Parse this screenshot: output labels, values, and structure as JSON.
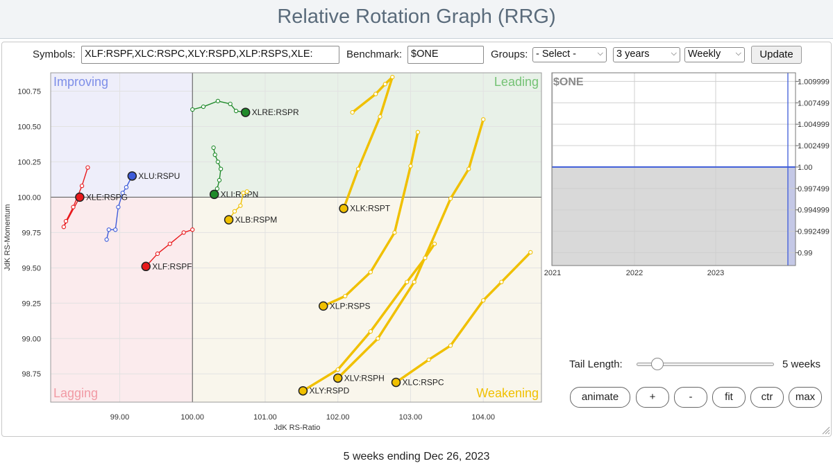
{
  "page_title": "Relative Rotation Graph (RRG)",
  "controls": {
    "symbols_label": "Symbols:",
    "symbols_value": "XLF:RSPF,XLC:RSPC,XLY:RSPD,XLP:RSPS,XLE:",
    "benchmark_label": "Benchmark:",
    "benchmark_value": "$ONE",
    "groups_label": "Groups:",
    "groups_value": "- Select -",
    "period_value": "3 years",
    "frequency_value": "Weekly",
    "update_label": "Update"
  },
  "colors": {
    "red": "#e8191c",
    "blue": "#3d5bd9",
    "green": "#1f8a2a",
    "yellow": "#f0c000",
    "improving_bg": "#eeeefa",
    "leading_bg": "#e8f1e8",
    "lagging_bg": "#fbebed",
    "weakening_bg": "#f9f6ec"
  },
  "chart_data": [
    {
      "type": "scatter",
      "title": "",
      "xlabel": "JdK RS-Ratio",
      "ylabel": "JdK RS-Momentum",
      "xlim": [
        98.05,
        104.8
      ],
      "ylim": [
        98.55,
        100.88
      ],
      "x_ticks": [
        "99.00",
        "100.00",
        "101.00",
        "102.00",
        "103.00",
        "104.00"
      ],
      "y_ticks": [
        "98.75",
        "99.00",
        "99.25",
        "99.50",
        "99.75",
        "100.00",
        "100.25",
        "100.50",
        "100.75"
      ],
      "grid": true,
      "center": [
        100,
        100
      ],
      "quadrants": {
        "improving": "Improving",
        "leading": "Leading",
        "lagging": "Lagging",
        "weakening": "Weakening"
      },
      "series": [
        {
          "name": "XLRE:RSPR",
          "color": "green",
          "thick": false,
          "x": [
            100.0,
            100.15,
            100.35,
            100.52,
            100.6,
            100.73
          ],
          "y": [
            100.62,
            100.64,
            100.68,
            100.66,
            100.61,
            100.6
          ]
        },
        {
          "name": "XLI:RSPN",
          "color": "green",
          "thick": false,
          "x": [
            100.29,
            100.31,
            100.35,
            100.39,
            100.37,
            100.34,
            100.3
          ],
          "y": [
            100.35,
            100.3,
            100.25,
            100.2,
            100.12,
            100.06,
            100.02
          ]
        },
        {
          "name": "XLU:RSPU",
          "color": "blue",
          "thick": false,
          "x": [
            98.82,
            98.85,
            98.94,
            98.98,
            99.04,
            99.09,
            99.17
          ],
          "y": [
            99.7,
            99.77,
            99.77,
            99.93,
            100.03,
            100.07,
            100.15
          ]
        },
        {
          "name": "XLE:RSPG",
          "color": "red",
          "thick": false,
          "x": [
            98.56,
            98.48,
            98.36,
            98.26,
            98.23,
            98.45
          ],
          "y": [
            100.21,
            100.08,
            99.93,
            99.83,
            99.79,
            100.0
          ]
        },
        {
          "name": "XLF:RSPF",
          "color": "red",
          "thick": false,
          "x": [
            100.0,
            99.88,
            99.69,
            99.52,
            99.36
          ],
          "y": [
            99.77,
            99.75,
            99.67,
            99.6,
            99.51
          ]
        },
        {
          "name": "XLB:RSPM",
          "color": "yellow",
          "thick": false,
          "x": [
            100.75,
            100.7,
            100.66,
            100.58,
            100.5
          ],
          "y": [
            100.04,
            100.03,
            99.94,
            99.9,
            99.84
          ]
        },
        {
          "name": "XLK:RSPT",
          "color": "yellow",
          "thick": true,
          "x": [
            102.2,
            102.52,
            102.65,
            102.75,
            102.58,
            102.28,
            102.08
          ],
          "y": [
            100.6,
            100.73,
            100.8,
            100.85,
            100.57,
            100.2,
            99.92
          ]
        },
        {
          "name": "XLP:RSPS",
          "color": "yellow",
          "thick": true,
          "x": [
            103.1,
            103.0,
            102.78,
            102.45,
            102.1,
            101.8
          ],
          "y": [
            100.46,
            100.22,
            99.75,
            99.47,
            99.3,
            99.23
          ]
        },
        {
          "name": "XLV:RSPH",
          "color": "yellow",
          "thick": true,
          "x": [
            104.0,
            103.8,
            103.55,
            103.05,
            102.55,
            102.0
          ],
          "y": [
            100.55,
            100.2,
            99.99,
            99.4,
            99.0,
            98.72
          ]
        },
        {
          "name": "XLY:RSPD",
          "color": "yellow",
          "thick": true,
          "x": [
            103.33,
            103.2,
            102.95,
            102.45,
            102.0,
            101.52
          ],
          "y": [
            99.67,
            99.57,
            99.4,
            99.05,
            98.78,
            98.63
          ]
        },
        {
          "name": "XLC:RSPC",
          "color": "yellow",
          "thick": true,
          "x": [
            104.65,
            104.25,
            104.0,
            103.55,
            103.25,
            102.8
          ],
          "y": [
            99.61,
            99.4,
            99.27,
            98.95,
            98.85,
            98.69
          ]
        }
      ]
    },
    {
      "type": "line",
      "title": "$ONE",
      "x_ticks": [
        "2021",
        "2022",
        "2023"
      ],
      "y_ticks": [
        "1.009999",
        "1.007499",
        "1.004999",
        "1.002499",
        "1.00",
        "0.997499",
        "0.994999",
        "0.992499",
        "0.99"
      ],
      "ylim": [
        0.9885,
        1.011
      ],
      "series": [
        {
          "name": "$ONE",
          "values": [
            1.0,
            1.0,
            1.0
          ]
        }
      ]
    }
  ],
  "tail": {
    "label": "Tail Length:",
    "value": "5 weeks",
    "level": 5
  },
  "buttons": {
    "animate": "animate",
    "plus": "+",
    "minus": "-",
    "fit": "fit",
    "ctr": "ctr",
    "max": "max"
  },
  "footer": "5 weeks ending Dec 26, 2023"
}
